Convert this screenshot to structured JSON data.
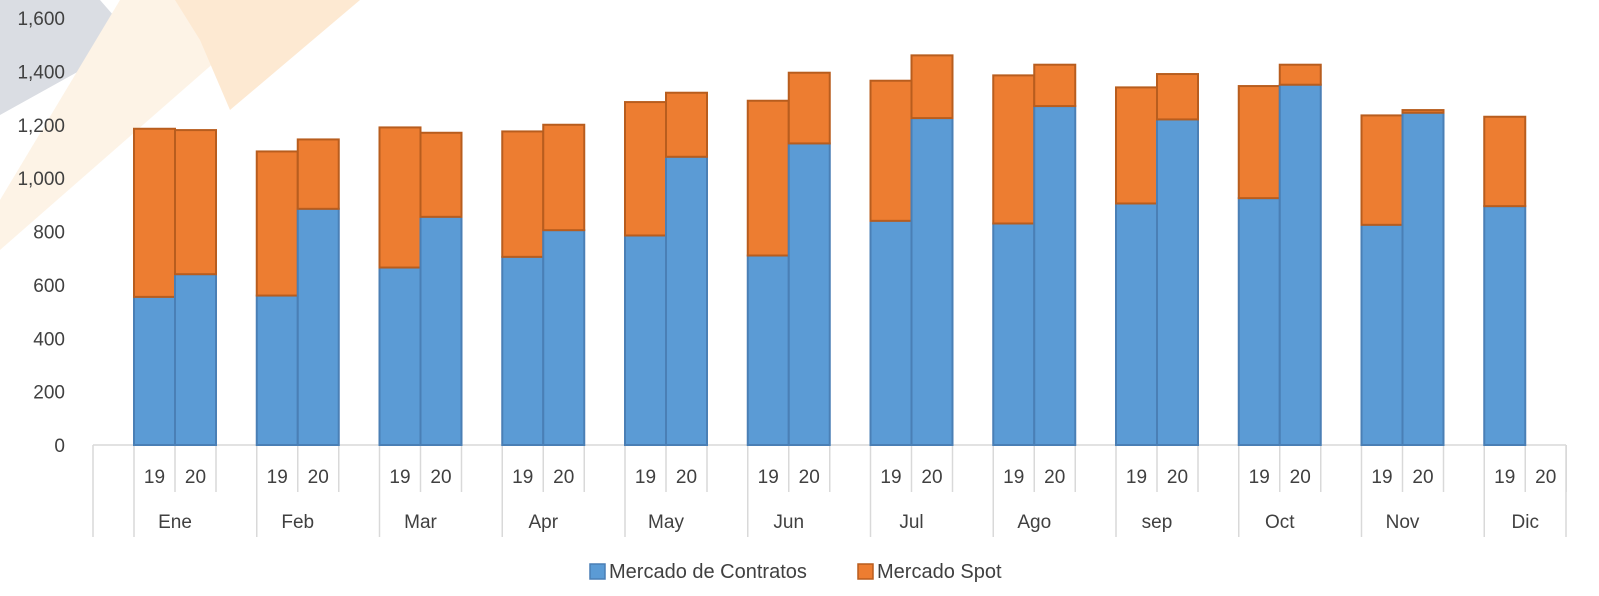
{
  "chart_data": {
    "type": "bar",
    "stacked": true,
    "groups": [
      "Ene",
      "Feb",
      "Mar",
      "Apr",
      "May",
      "Jun",
      "Jul",
      "Ago",
      "sep",
      "Oct",
      "Nov",
      "Dic"
    ],
    "subcategories": [
      "19",
      "20"
    ],
    "ylim": [
      0,
      1600
    ],
    "yticks": [
      "0",
      "200",
      "400",
      "600",
      "800",
      "1,000",
      "1,200",
      "1,400",
      "1,600"
    ],
    "ytick_values": [
      0,
      200,
      400,
      600,
      800,
      1000,
      1200,
      1400,
      1600
    ],
    "legend_position": "bottom",
    "grid": false,
    "series": [
      {
        "name": "Mercado de Contratos",
        "color": "#5B9BD5",
        "values": [
          [
            555,
            640
          ],
          [
            560,
            885
          ],
          [
            665,
            855
          ],
          [
            705,
            805
          ],
          [
            785,
            1080
          ],
          [
            710,
            1130
          ],
          [
            840,
            1225
          ],
          [
            830,
            1270
          ],
          [
            905,
            1220
          ],
          [
            925,
            1350
          ],
          [
            825,
            1245
          ],
          [
            895,
            null
          ]
        ]
      },
      {
        "name": "Mercado Spot",
        "color": "#ED7D31",
        "values": [
          [
            630,
            540
          ],
          [
            540,
            260
          ],
          [
            525,
            315
          ],
          [
            470,
            395
          ],
          [
            500,
            240
          ],
          [
            580,
            265
          ],
          [
            525,
            235
          ],
          [
            555,
            155
          ],
          [
            435,
            170
          ],
          [
            420,
            75
          ],
          [
            410,
            10
          ],
          [
            335,
            null
          ]
        ]
      }
    ]
  }
}
